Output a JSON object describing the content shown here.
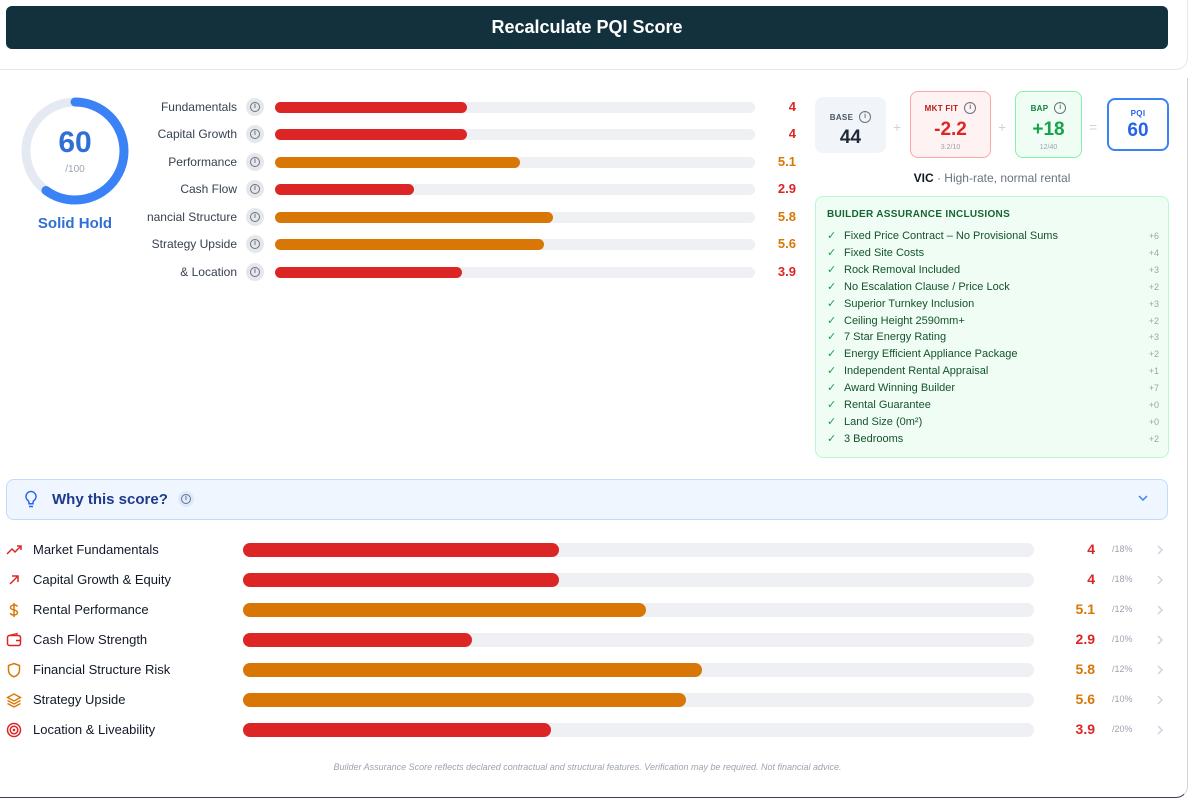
{
  "button": {
    "recalculate": "Recalculate PQI Score"
  },
  "gauge": {
    "value": "60",
    "max": "/100",
    "score": 60,
    "label": "Solid Hold"
  },
  "mini_bars": [
    {
      "label": "Fundamentals",
      "value": "4",
      "pct": 0.4,
      "color": "#dc2626"
    },
    {
      "label": "Capital Growth",
      "value": "4",
      "pct": 0.4,
      "color": "#dc2626"
    },
    {
      "label": "Performance",
      "value": "5.1",
      "pct": 0.51,
      "color": "#d97706"
    },
    {
      "label": "Cash Flow",
      "value": "2.9",
      "pct": 0.29,
      "color": "#dc2626"
    },
    {
      "label": "Financial Structure",
      "value": "5.8",
      "pct": 0.58,
      "color": "#d97706"
    },
    {
      "label": "Strategy Upside",
      "value": "5.6",
      "pct": 0.56,
      "color": "#d97706"
    },
    {
      "label": "Location &",
      "value": "3.9",
      "pct": 0.39,
      "color": "#dc2626"
    }
  ],
  "summary": {
    "base": {
      "label": "BASE",
      "value": "44"
    },
    "mkt_fit": {
      "label": "MKT FIT",
      "value": "-2.2",
      "sub": "3.2/10"
    },
    "bap": {
      "label": "BAP",
      "value": "+18",
      "sub": "12/40"
    },
    "pqi": {
      "label": "PQI",
      "value": "60"
    },
    "plus": "+",
    "equals": "=",
    "region": "VIC",
    "region_desc": " · High-rate, normal rental"
  },
  "bas": {
    "title": "BUILDER ASSURANCE INCLUSIONS",
    "items": [
      {
        "text": "Fixed Price Contract – No Provisional Sums",
        "pts": "+6"
      },
      {
        "text": "Fixed Site Costs",
        "pts": "+4"
      },
      {
        "text": "Rock Removal Included",
        "pts": "+3"
      },
      {
        "text": "No Escalation Clause / Price Lock",
        "pts": "+2"
      },
      {
        "text": "Superior Turnkey Inclusion",
        "pts": "+3"
      },
      {
        "text": "Ceiling Height 2590mm+",
        "pts": "+2"
      },
      {
        "text": "7 Star Energy Rating",
        "pts": "+3"
      },
      {
        "text": "Energy Efficient Appliance Package",
        "pts": "+2"
      },
      {
        "text": "Independent Rental Appraisal",
        "pts": "+1"
      },
      {
        "text": "Award Winning Builder",
        "pts": "+7"
      },
      {
        "text": "Rental Guarantee",
        "pts": "+0"
      },
      {
        "text": "Land Size (0m²)",
        "pts": "+0"
      },
      {
        "text": "3 Bedrooms",
        "pts": "+2"
      }
    ]
  },
  "why": {
    "title": "Why this score?"
  },
  "details": [
    {
      "icon": "trend-up-icon",
      "label": "Market Fundamentals",
      "value": "4",
      "weight": "/18%",
      "pct": 0.4,
      "color": "#dc2626"
    },
    {
      "icon": "arrow-up-right-icon",
      "label": "Capital Growth & Equity",
      "value": "4",
      "weight": "/18%",
      "pct": 0.4,
      "color": "#dc2626"
    },
    {
      "icon": "dollar-icon",
      "label": "Rental Performance",
      "value": "5.1",
      "weight": "/12%",
      "pct": 0.51,
      "color": "#d97706"
    },
    {
      "icon": "wallet-icon",
      "label": "Cash Flow Strength",
      "value": "2.9",
      "weight": "/10%",
      "pct": 0.29,
      "color": "#dc2626"
    },
    {
      "icon": "shield-icon",
      "label": "Financial Structure Risk",
      "value": "5.8",
      "weight": "/12%",
      "pct": 0.58,
      "color": "#d97706"
    },
    {
      "icon": "layers-icon",
      "label": "Strategy Upside",
      "value": "5.6",
      "weight": "/10%",
      "pct": 0.56,
      "color": "#d97706"
    },
    {
      "icon": "target-icon",
      "label": "Location & Liveability",
      "value": "3.9",
      "weight": "/20%",
      "pct": 0.39,
      "color": "#dc2626"
    }
  ],
  "footer": "Builder Assurance Score reflects declared contractual and structural features. Verification may be required. Not financial advice."
}
